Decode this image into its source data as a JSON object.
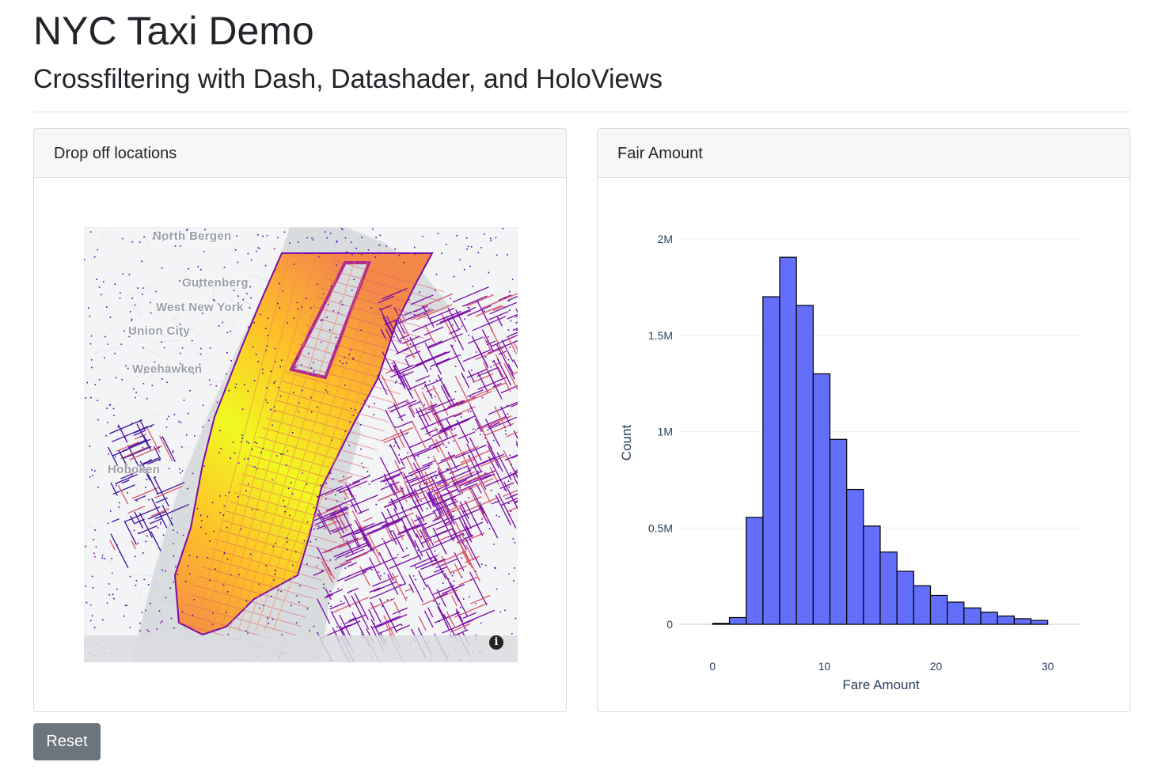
{
  "page": {
    "title": "NYC Taxi Demo",
    "subtitle": "Crossfiltering with Dash, Datashader, and HoloViews"
  },
  "map_panel": {
    "header": "Drop off locations",
    "place_labels": [
      "North Bergen",
      "Guttenberg",
      "West New York",
      "Union City",
      "Weehawken",
      "Hoboken"
    ],
    "info_icon": "info-icon",
    "colorscale": [
      "#3b0f9e",
      "#7a0ba8",
      "#b02a8f",
      "#d8576b",
      "#f48849",
      "#fec029",
      "#f0f921"
    ]
  },
  "hist_panel": {
    "header": "Fair Amount"
  },
  "chart_data": {
    "type": "bar",
    "xlabel": "Fare Amount",
    "ylabel": "Count",
    "xlim": [
      -3,
      33
    ],
    "ylim": [
      0,
      2000000
    ],
    "x_ticks": [
      {
        "value": 0,
        "label": "0"
      },
      {
        "value": 10,
        "label": "10"
      },
      {
        "value": 20,
        "label": "20"
      },
      {
        "value": 30,
        "label": "30"
      }
    ],
    "y_ticks": [
      {
        "value": 0,
        "label": "0"
      },
      {
        "value": 500000,
        "label": "0.5M"
      },
      {
        "value": 1000000,
        "label": "1M"
      },
      {
        "value": 1500000,
        "label": "1.5M"
      },
      {
        "value": 2000000,
        "label": "2M"
      }
    ],
    "bin_width": 1.5,
    "bin_start": 0,
    "values": [
      5000,
      35000,
      555000,
      1700000,
      1905000,
      1655000,
      1300000,
      960000,
      700000,
      510000,
      375000,
      275000,
      200000,
      150000,
      115000,
      85000,
      63000,
      43000,
      29000,
      20000
    ],
    "bar_color": "#636efa",
    "grid": true
  },
  "controls": {
    "reset_label": "Reset"
  }
}
